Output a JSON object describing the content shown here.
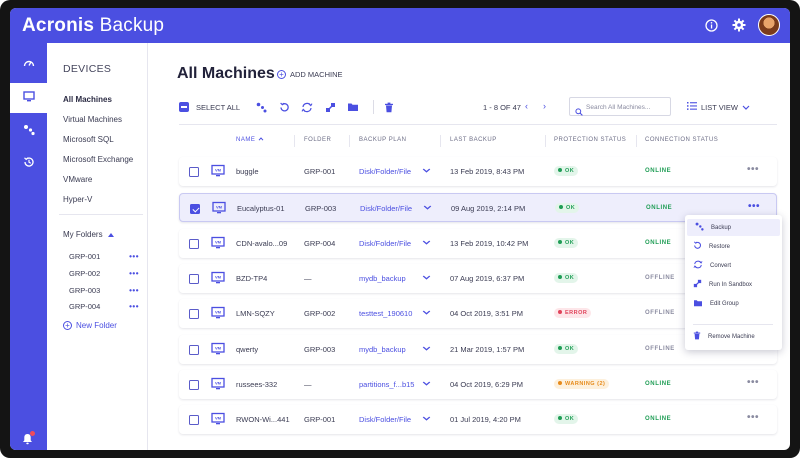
{
  "app": {
    "brand_primary": "Acronis",
    "brand_secondary": " Backup",
    "accent_color": "#4b4fe1"
  },
  "topbar": {
    "icons": [
      "info-icon",
      "gear-icon",
      "user-avatar"
    ]
  },
  "rail": {
    "items": [
      "dashboard-icon",
      "devices-icon",
      "backup-plans-icon",
      "activities-icon"
    ],
    "active": "devices-icon",
    "bell": "bell-icon"
  },
  "sidebar": {
    "title": "DEVICES",
    "items": [
      {
        "label": "All Machines",
        "active": true
      },
      {
        "label": "Virtual Machines"
      },
      {
        "label": "Microsoft SQL"
      },
      {
        "label": "Microsoft Exchange"
      },
      {
        "label": "VMware"
      },
      {
        "label": "Hyper-V"
      }
    ],
    "folders_label": "My Folders",
    "folders": [
      "GRP-001",
      "GRP-002",
      "GRP-003",
      "GRP-004"
    ],
    "folder_menu": "•••",
    "new_folder": "New Folder"
  },
  "main": {
    "title": "All Machines",
    "add_machine": "ADD MACHINE",
    "select_all": "SELECT ALL",
    "pager": "1 - 8  OF  47",
    "search_placeholder": "Search All Machines...",
    "list_view": "LIST VIEW"
  },
  "table": {
    "columns": [
      "NAME",
      "FOLDER",
      "BACKUP PLAN",
      "LAST BACKUP",
      "PROTECTION STATUS",
      "CONNECTION STATUS"
    ],
    "rows": [
      {
        "name": "buggle",
        "folder": "GRP-001",
        "plan": "Disk/Folder/File",
        "last": "13 Feb 2019, 8:43 PM",
        "status": "OK",
        "conn": "ONLINE",
        "checked": false
      },
      {
        "name": "Eucalyptus-01",
        "folder": "GRP-003",
        "plan": "Disk/Folder/File",
        "last": "09 Aug 2019, 2:14 PM",
        "status": "OK",
        "conn": "ONLINE",
        "checked": true
      },
      {
        "name": "CDN-avalo...09",
        "folder": "GRP-004",
        "plan": "Disk/Folder/File",
        "last": "13 Feb 2019, 10:42 PM",
        "status": "OK",
        "conn": "ONLINE",
        "checked": false
      },
      {
        "name": "BZD-TP4",
        "folder": "—",
        "plan": "mydb_backup",
        "last": "07 Aug 2019, 6:37 PM",
        "status": "OK",
        "conn": "OFFLINE",
        "checked": false
      },
      {
        "name": "LMN-SQZY",
        "folder": "GRP-002",
        "plan": "testtest_190610",
        "last": "04 Oct 2019, 3:51 PM",
        "status": "ERROR",
        "conn": "OFFLINE",
        "checked": false
      },
      {
        "name": "qwerty",
        "folder": "GRP-003",
        "plan": "mydb_backup",
        "last": "21 Mar 2019, 1:57 PM",
        "status": "OK",
        "conn": "OFFLINE",
        "checked": false
      },
      {
        "name": "russees-332",
        "folder": "—",
        "plan": "partitions_f...b15",
        "last": "04 Oct 2019, 6:29 PM",
        "status": "WARNING (2)",
        "conn": "ONLINE",
        "checked": false
      },
      {
        "name": "RWON-Wi...441",
        "folder": "GRP-001",
        "plan": "Disk/Folder/File",
        "last": "01 Jul 2019, 4:20 PM",
        "status": "OK",
        "conn": "ONLINE",
        "checked": false
      }
    ],
    "more": "•••"
  },
  "context_menu": {
    "items": [
      {
        "label": "Backup",
        "icon": "backup-icon"
      },
      {
        "label": "Restore",
        "icon": "restore-icon"
      },
      {
        "label": "Convert",
        "icon": "convert-icon"
      },
      {
        "label": "Run In Sandbox",
        "icon": "sandbox-icon"
      },
      {
        "label": "Edit Group",
        "icon": "folder-icon"
      },
      {
        "label": "Remove Machine",
        "icon": "trash-icon"
      }
    ]
  },
  "status_colors": {
    "ok": "#1f9d55",
    "ok_bg": "#e3f5ea",
    "error": "#e0435a",
    "error_bg": "#fde6e9",
    "warning": "#e68a1a",
    "warning_bg": "#fdf0dc",
    "online": "#1f9d55",
    "offline": "#8a8ba0"
  }
}
